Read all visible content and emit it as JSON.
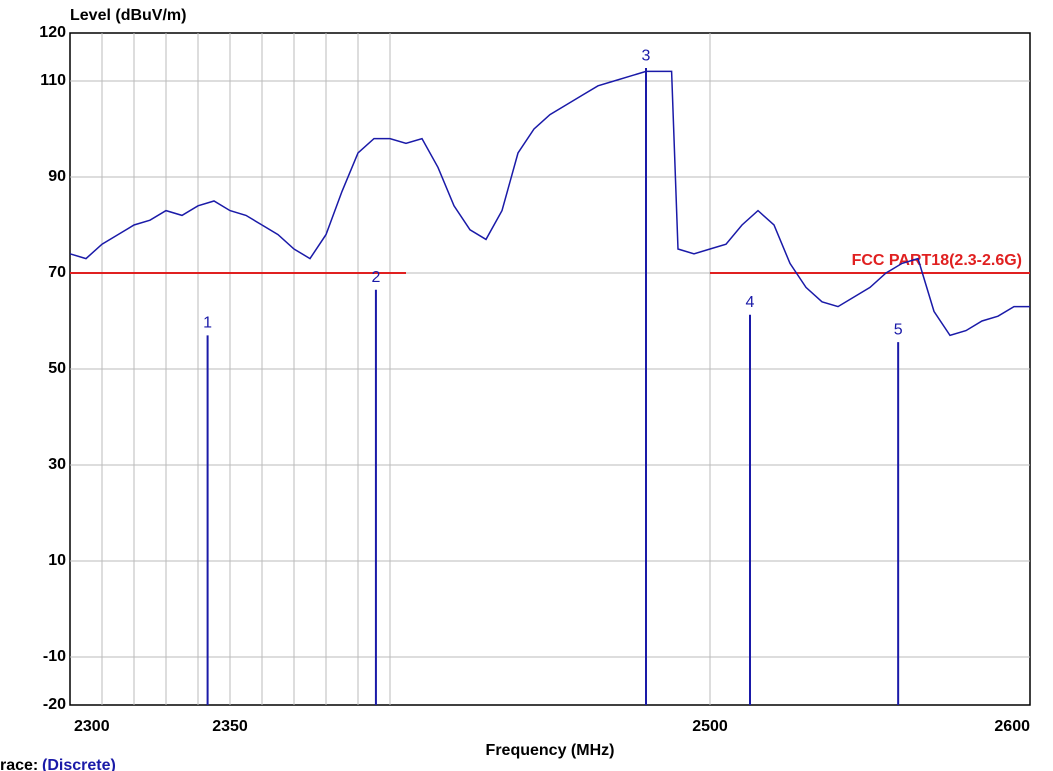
{
  "chart_data": {
    "type": "line",
    "title": "Level (dBuV/m)",
    "x_label": "Frequency (MHz)",
    "trace_label": "race:",
    "trace_mode": "(Discrete)",
    "xlim": [
      2300,
      2600
    ],
    "ylim": [
      -20,
      120
    ],
    "xticks": [
      2300,
      2350,
      2500,
      2600
    ],
    "xgrid": [
      2310,
      2320,
      2330,
      2340,
      2350,
      2360,
      2370,
      2380,
      2390,
      2400,
      2500
    ],
    "yticks": [
      120,
      110,
      90,
      70,
      50,
      30,
      10,
      -10,
      -20
    ],
    "ygrid": [
      110,
      90,
      70,
      50,
      30,
      10,
      -10
    ],
    "grid": true,
    "limit": {
      "name": "FCC PART18(2.3-2.6G)",
      "color": "#e02020",
      "value": 70,
      "segments": [
        [
          2300,
          2405
        ],
        [
          2500,
          2600
        ]
      ]
    },
    "series": [
      {
        "name": "Trace",
        "color": "#1a1aa8",
        "x": [
          2300,
          2305,
          2310,
          2315,
          2320,
          2325,
          2330,
          2335,
          2340,
          2345,
          2350,
          2355,
          2360,
          2365,
          2370,
          2375,
          2380,
          2385,
          2390,
          2395,
          2400,
          2405,
          2410,
          2415,
          2420,
          2425,
          2430,
          2435,
          2440,
          2445,
          2450,
          2455,
          2460,
          2465,
          2470,
          2475,
          2480,
          2485,
          2488,
          2490,
          2495,
          2500,
          2505,
          2510,
          2515,
          2520,
          2525,
          2530,
          2535,
          2540,
          2545,
          2550,
          2555,
          2560,
          2565,
          2570,
          2575,
          2580,
          2585,
          2590,
          2595,
          2600
        ],
        "values": [
          74,
          73,
          76,
          78,
          80,
          81,
          83,
          82,
          84,
          85,
          83,
          82,
          80,
          78,
          75,
          73,
          78,
          87,
          95,
          98,
          98,
          97,
          98,
          92,
          84,
          79,
          77,
          83,
          95,
          100,
          103,
          105,
          107,
          109,
          110,
          111,
          112,
          112,
          112,
          75,
          74,
          75,
          76,
          80,
          83,
          80,
          72,
          67,
          64,
          63,
          65,
          67,
          70,
          72,
          73,
          62,
          57,
          58,
          60,
          61,
          63,
          63
        ]
      }
    ],
    "markers": {
      "color": "#1a1aa8",
      "labels": [
        "1",
        "2",
        "3",
        "4",
        "5"
      ],
      "x": [
        2343,
        2395.6,
        2480,
        2512.5,
        2558.8
      ],
      "values": [
        57,
        66.5,
        112.7,
        61.3,
        55.6
      ]
    }
  }
}
